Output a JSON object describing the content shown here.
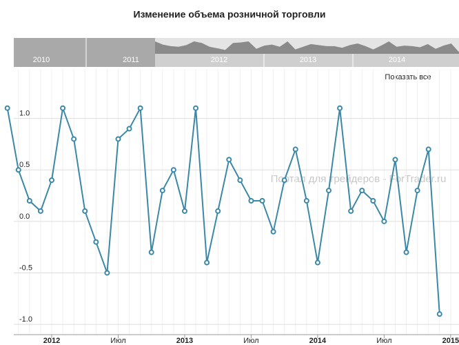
{
  "chart_data": {
    "type": "line",
    "title": "Изменение объема розничной торговли",
    "x": [
      "2011-09",
      "2011-10",
      "2011-11",
      "2011-12",
      "2012-01",
      "2012-02",
      "2012-03",
      "2012-04",
      "2012-05",
      "2012-06",
      "2012-07",
      "2012-08",
      "2012-09",
      "2012-10",
      "2012-11",
      "2012-12",
      "2013-01",
      "2013-02",
      "2013-03",
      "2013-04",
      "2013-05",
      "2013-06",
      "2013-07",
      "2013-08",
      "2013-09",
      "2013-10",
      "2013-11",
      "2013-12",
      "2014-01",
      "2014-02",
      "2014-03",
      "2014-04",
      "2014-05",
      "2014-06",
      "2014-07",
      "2014-08",
      "2014-09",
      "2014-10",
      "2014-11",
      "2014-12"
    ],
    "series": [
      {
        "color": "#3a87a8",
        "values": [
          1.1,
          0.5,
          0.2,
          0.1,
          0.4,
          1.1,
          0.8,
          0.1,
          -0.2,
          -0.5,
          0.8,
          0.9,
          1.1,
          -0.3,
          0.3,
          0.5,
          0.1,
          1.1,
          -0.4,
          0.1,
          0.6,
          0.4,
          0.2,
          0.2,
          -0.1,
          0.4,
          0.7,
          0.2,
          -0.4,
          0.3,
          1.1,
          0.1,
          0.3,
          0.2,
          0.0,
          0.6,
          -0.3,
          0.3,
          0.7,
          -0.9
        ]
      }
    ],
    "ylim": [
      -1.1,
      1.48
    ],
    "yticks": [
      {
        "value": 1,
        "label": "1.0"
      },
      0.5,
      {
        "value": 0,
        "label": "0.0"
      },
      -0.5,
      {
        "value": -1,
        "label": "-1.0"
      }
    ],
    "xticks": [
      {
        "value": "2012-01",
        "label": "2012"
      },
      {
        "value": "2012-07",
        "label": "Июл"
      },
      {
        "value": "2013-01",
        "label": "2013"
      },
      {
        "value": "2013-07",
        "label": "Июл"
      },
      {
        "value": "2014-01",
        "label": "2014"
      },
      {
        "value": "2014-07",
        "label": "Июл"
      },
      {
        "value": "2015-01",
        "label": "2015"
      }
    ],
    "grid": true,
    "watermark": "Портал для трейдеров - ForTrader.ru",
    "navigator": {
      "labels": [
        "2010",
        "2011",
        "2012",
        "2013",
        "2014"
      ]
    },
    "reset_button": "Показать все"
  }
}
